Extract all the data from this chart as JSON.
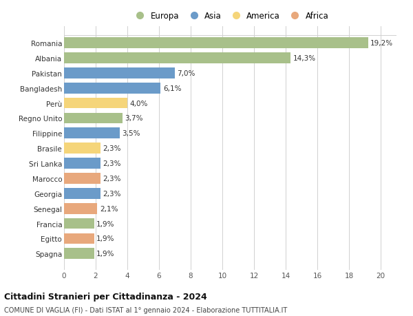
{
  "countries": [
    "Romania",
    "Albania",
    "Pakistan",
    "Bangladesh",
    "Perù",
    "Regno Unito",
    "Filippine",
    "Brasile",
    "Sri Lanka",
    "Marocco",
    "Georgia",
    "Senegal",
    "Francia",
    "Egitto",
    "Spagna"
  ],
  "values": [
    19.2,
    14.3,
    7.0,
    6.1,
    4.0,
    3.7,
    3.5,
    2.3,
    2.3,
    2.3,
    2.3,
    2.1,
    1.9,
    1.9,
    1.9
  ],
  "labels": [
    "19,2%",
    "14,3%",
    "7,0%",
    "6,1%",
    "4,0%",
    "3,7%",
    "3,5%",
    "2,3%",
    "2,3%",
    "2,3%",
    "2,3%",
    "2,1%",
    "1,9%",
    "1,9%",
    "1,9%"
  ],
  "continents": [
    "Europa",
    "Europa",
    "Asia",
    "Asia",
    "America",
    "Europa",
    "Asia",
    "America",
    "Asia",
    "Africa",
    "Asia",
    "Africa",
    "Europa",
    "Africa",
    "Europa"
  ],
  "colors": {
    "Europa": "#a8c08a",
    "Asia": "#6b9bc9",
    "America": "#f5d57a",
    "Africa": "#e8a87c"
  },
  "legend_order": [
    "Europa",
    "Asia",
    "America",
    "Africa"
  ],
  "xlim": [
    0,
    21
  ],
  "xticks": [
    0,
    2,
    4,
    6,
    8,
    10,
    12,
    14,
    16,
    18,
    20
  ],
  "title": "Cittadini Stranieri per Cittadinanza - 2024",
  "subtitle": "COMUNE DI VAGLIA (FI) - Dati ISTAT al 1° gennaio 2024 - Elaborazione TUTTITALIA.IT",
  "bg_color": "#ffffff",
  "grid_color": "#d0d0d0",
  "bar_height": 0.72,
  "label_fontsize": 7.5,
  "ytick_fontsize": 7.5,
  "xtick_fontsize": 7.5,
  "legend_fontsize": 8.5,
  "title_fontsize": 9.0,
  "subtitle_fontsize": 7.0
}
